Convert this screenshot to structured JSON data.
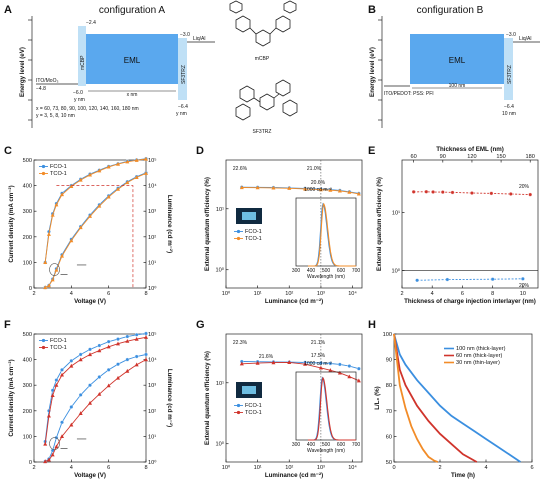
{
  "figure": {
    "panels": {
      "A": {
        "label": "A",
        "title": "configuration A",
        "ylabel": "Energy level (eV)",
        "layers": [
          {
            "name": "ITO/MoO₃",
            "level": "−4.8"
          },
          {
            "name": "mCBP",
            "lumo": "−2.4",
            "homo": "−6.0",
            "thickness": "y nm"
          },
          {
            "name": "EML",
            "thickness": "x nm"
          },
          {
            "name": "SF3TRZ",
            "lumo": "−3.0",
            "homo": "−6.4",
            "thickness": "y nm"
          },
          {
            "name": "Liq/Al"
          }
        ],
        "note_x": "x = 60, 73, 80, 90, 100, 120, 140, 160, 180 nm",
        "note_y": "y = 3, 5, 8, 10 nm"
      },
      "B": {
        "label": "B",
        "title": "configuration B",
        "ylabel": "Energy level (eV)",
        "layers": [
          {
            "name": "ITO/PEDOT: PSS: PFI"
          },
          {
            "name": "EML",
            "thickness": "100 nm"
          },
          {
            "name": "SF3TRZ",
            "lumo": "−3.0",
            "homo": "−6.4",
            "thickness": "10 nm"
          },
          {
            "name": "Liq/Al"
          }
        ]
      },
      "molecules": [
        "mCBP",
        "SF3TRZ"
      ]
    },
    "colors": {
      "blue": "#3b8fe0",
      "orange": "#f28c28",
      "red": "#d0342c",
      "eml": "#5aa8ee",
      "layer": "#bfe0f6",
      "dash": "#d0342c"
    },
    "icons": [
      "device-photo-icon",
      "molecule-structure-icon"
    ]
  },
  "chart_data": [
    {
      "panel": "C",
      "type": "line",
      "xlabel": "Voltage (V)",
      "ylabel": "Current density (mA cm⁻²)",
      "y2label": "Luminance (cd m⁻²)",
      "xlim": [
        2,
        8
      ],
      "ylim": [
        0,
        500
      ],
      "y2lim_log": [
        0,
        5
      ],
      "xticks": [
        "2",
        "4",
        "6",
        "8"
      ],
      "yticks": [
        "0",
        "100",
        "200",
        "300",
        "400",
        "500"
      ],
      "y2ticks": [
        "10⁰",
        "10¹",
        "10²",
        "10³",
        "10⁴",
        "10⁵"
      ],
      "legend": [
        "FCO-1",
        "TCO-1"
      ],
      "series": [
        {
          "name": "FCO-1",
          "axis": "J",
          "x": [
            2.6,
            2.8,
            3,
            3.2,
            3.5,
            4,
            4.5,
            5,
            5.5,
            6,
            6.5,
            7,
            7.5,
            8
          ],
          "y": [
            2,
            10,
            35,
            75,
            130,
            190,
            240,
            285,
            325,
            360,
            390,
            415,
            435,
            450
          ]
        },
        {
          "name": "TCO-1",
          "axis": "J",
          "x": [
            2.6,
            2.8,
            3,
            3.2,
            3.5,
            4,
            4.5,
            5,
            5.5,
            6,
            6.5,
            7,
            7.5,
            8
          ],
          "y": [
            2,
            9,
            32,
            70,
            125,
            185,
            236,
            280,
            320,
            356,
            386,
            412,
            432,
            448
          ]
        },
        {
          "name": "FCO-1",
          "axis": "L",
          "x": [
            2.6,
            2.8,
            3,
            3.2,
            3.5,
            4,
            4.5,
            5,
            5.5,
            6,
            6.5,
            7,
            7.5,
            8
          ],
          "y": [
            1.0,
            2.2,
            2.9,
            3.3,
            3.7,
            4.0,
            4.25,
            4.45,
            4.6,
            4.75,
            4.85,
            4.95,
            5.0,
            5.05
          ]
        },
        {
          "name": "TCO-1",
          "axis": "L",
          "x": [
            2.6,
            2.8,
            3,
            3.2,
            3.5,
            4,
            4.5,
            5,
            5.5,
            6,
            6.5,
            7,
            7.5,
            8
          ],
          "y": [
            1.0,
            2.1,
            2.85,
            3.25,
            3.65,
            3.97,
            4.22,
            4.42,
            4.58,
            4.73,
            4.84,
            4.93,
            4.99,
            5.04
          ]
        }
      ]
    },
    {
      "panel": "D",
      "type": "line",
      "xlabel": "Luminance (cd m⁻²)",
      "ylabel": "External quantum efficiency (%)",
      "xlim_log": [
        0,
        4.3
      ],
      "ylim_log": [
        -0.3,
        1.8
      ],
      "xticks": [
        "10⁰",
        "10¹",
        "10²",
        "10³",
        "10⁴"
      ],
      "yticks": [
        "10⁰",
        "10¹"
      ],
      "legend": [
        "FCO-1",
        "TCO-1"
      ],
      "annotations": [
        "22.6%",
        "21.0%",
        "20.6%",
        "1000 cd m⁻²"
      ],
      "series": [
        {
          "name": "FCO-1",
          "x": [
            0.5,
            1,
            1.5,
            2,
            2.5,
            3,
            3.3,
            3.6,
            3.9,
            4.2
          ],
          "y": [
            22.6,
            22.5,
            22.3,
            22.0,
            21.6,
            21.0,
            20.6,
            20.0,
            19.0,
            17.8
          ]
        },
        {
          "name": "TCO-1",
          "x": [
            0.5,
            1,
            1.5,
            2,
            2.5,
            3,
            3.3,
            3.6,
            3.9,
            4.2
          ],
          "y": [
            22.3,
            22.2,
            22.0,
            21.7,
            21.2,
            20.6,
            20.2,
            19.6,
            18.7,
            17.5
          ]
        }
      ],
      "inset": {
        "xlabel": "Wavelength (nm)",
        "xlim": [
          300,
          700
        ],
        "xticks": [
          "300",
          "400",
          "500",
          "600",
          "700"
        ],
        "peak": 480
      }
    },
    {
      "panel": "E",
      "type": "scatter",
      "xlabel": "Thickness of charge injection interlayer (nm)",
      "x2label": "Thickness of EML (nm)",
      "ylabel": "External quantum efficiency (%)",
      "xlim": [
        2,
        11
      ],
      "x2lim": [
        48,
        188
      ],
      "ylim_log": [
        -0.3,
        1.9
      ],
      "xticks": [
        "2",
        "4",
        "6",
        "8",
        "10"
      ],
      "x2ticks": [
        "60",
        "90",
        "120",
        "150",
        "180"
      ],
      "yticks": [
        "10⁰",
        "10¹"
      ],
      "annotations": [
        "20%",
        "20%"
      ],
      "series": [
        {
          "name": "EML thickness",
          "axis": "top",
          "x": [
            60,
            73,
            80,
            90,
            100,
            120,
            140,
            160,
            180
          ],
          "y": [
            22.5,
            22.6,
            22.4,
            22.3,
            22.0,
            21.5,
            21.2,
            20.7,
            20.2
          ]
        },
        {
          "name": "interlayer thickness",
          "axis": "bottom",
          "x": [
            3,
            5,
            8,
            10
          ],
          "y": [
            0.68,
            0.7,
            0.71,
            0.72
          ]
        }
      ]
    },
    {
      "panel": "F",
      "type": "line",
      "xlabel": "Voltage (V)",
      "ylabel": "Current density (mA cm⁻²)",
      "y2label": "Luminance (cd m⁻²)",
      "xlim": [
        2,
        8
      ],
      "ylim": [
        0,
        500
      ],
      "y2lim_log": [
        0,
        5
      ],
      "xticks": [
        "2",
        "4",
        "6",
        "8"
      ],
      "yticks": [
        "0",
        "100",
        "200",
        "300",
        "400",
        "500"
      ],
      "y2ticks": [
        "10⁰",
        "10¹",
        "10²",
        "10³",
        "10⁴",
        "10⁵"
      ],
      "legend": [
        "FCO-1",
        "TCO-1"
      ],
      "series": [
        {
          "name": "FCO-1",
          "axis": "J",
          "x": [
            2.6,
            2.8,
            3,
            3.2,
            3.5,
            4,
            4.5,
            5,
            5.5,
            6,
            6.5,
            7,
            7.5,
            8
          ],
          "y": [
            2,
            12,
            45,
            95,
            155,
            215,
            262,
            300,
            332,
            360,
            382,
            400,
            412,
            420
          ]
        },
        {
          "name": "TCO-1",
          "axis": "J",
          "x": [
            2.6,
            2.8,
            3,
            3.2,
            3.5,
            4,
            4.5,
            5,
            5.5,
            6,
            6.5,
            7,
            7.5,
            8
          ],
          "y": [
            2,
            8,
            28,
            60,
            100,
            145,
            190,
            230,
            265,
            298,
            328,
            355,
            380,
            400
          ]
        },
        {
          "name": "FCO-1",
          "axis": "L",
          "x": [
            2.6,
            2.8,
            3,
            3.2,
            3.5,
            4,
            4.5,
            5,
            5.5,
            6,
            6.5,
            7,
            7.5,
            8
          ],
          "y": [
            0.8,
            2.0,
            2.8,
            3.2,
            3.6,
            3.95,
            4.2,
            4.4,
            4.55,
            4.7,
            4.8,
            4.9,
            4.97,
            5.02
          ]
        },
        {
          "name": "TCO-1",
          "axis": "L",
          "x": [
            2.6,
            2.8,
            3,
            3.2,
            3.5,
            4,
            4.5,
            5,
            5.5,
            6,
            6.5,
            7,
            7.5,
            8
          ],
          "y": [
            0.7,
            1.8,
            2.6,
            3.0,
            3.4,
            3.75,
            4.0,
            4.2,
            4.35,
            4.5,
            4.62,
            4.72,
            4.8,
            4.87
          ]
        }
      ]
    },
    {
      "panel": "G",
      "type": "line",
      "xlabel": "Luminance (cd m⁻²)",
      "ylabel": "External quantum efficiency (%)",
      "xlim_log": [
        0,
        4.3
      ],
      "ylim_log": [
        -0.3,
        1.8
      ],
      "xticks": [
        "10⁰",
        "10¹",
        "10²",
        "10³",
        "10⁴"
      ],
      "yticks": [
        "10⁰",
        "10¹"
      ],
      "legend": [
        "FCO-1",
        "TCO-1"
      ],
      "annotations": [
        "22.3%",
        "21.6%",
        "21.1%",
        "17.5%",
        "1000 cd m⁻²"
      ],
      "series": [
        {
          "name": "FCO-1",
          "x": [
            0.5,
            1,
            1.5,
            2,
            2.5,
            3,
            3.3,
            3.6,
            3.9,
            4.2
          ],
          "y": [
            22.3,
            22.2,
            22.0,
            21.8,
            21.5,
            21.1,
            20.7,
            20.0,
            18.8,
            17.0
          ]
        },
        {
          "name": "TCO-1",
          "x": [
            0.5,
            1,
            1.5,
            2,
            2.5,
            3,
            3.3,
            3.6,
            3.9,
            4.2
          ],
          "y": [
            20.5,
            21.0,
            21.4,
            21.6,
            20.2,
            17.5,
            16.0,
            14.5,
            12.6,
            10.8
          ]
        }
      ],
      "inset": {
        "xlabel": "Wavelength (nm)",
        "xlim": [
          300,
          700
        ],
        "xticks": [
          "300",
          "400",
          "500",
          "600",
          "700"
        ],
        "peak": 475
      }
    },
    {
      "panel": "H",
      "type": "line",
      "xlabel": "Time (h)",
      "ylabel": "L/L₀ (%)",
      "xlim": [
        0,
        6
      ],
      "ylim": [
        50,
        100
      ],
      "xticks": [
        "0",
        "2",
        "4",
        "6"
      ],
      "yticks": [
        "50",
        "60",
        "70",
        "80",
        "90",
        "100"
      ],
      "legend": [
        "100 nm (thick-layer)",
        "60 nm (thick-layer)",
        "30 nm (thin-layer)"
      ],
      "series": [
        {
          "name": "100 nm (thick-layer)",
          "x": [
            0,
            0.25,
            0.5,
            1,
            1.5,
            2,
            2.5,
            3,
            3.5,
            4,
            4.5,
            5,
            5.5
          ],
          "y": [
            100,
            92,
            88,
            82,
            77,
            72,
            68,
            65,
            62,
            59,
            56,
            53,
            50
          ]
        },
        {
          "name": "60 nm (thick-layer)",
          "x": [
            0,
            0.25,
            0.5,
            1,
            1.5,
            2,
            2.5,
            3,
            3.6
          ],
          "y": [
            100,
            86,
            80,
            72,
            66,
            61,
            57,
            53,
            50
          ]
        },
        {
          "name": "30 nm (thin-layer)",
          "x": [
            0,
            0.25,
            0.5,
            0.75,
            1,
            1.25,
            1.5,
            1.75,
            1.9
          ],
          "y": [
            100,
            80,
            71,
            64,
            59,
            55,
            52,
            50.5,
            50
          ]
        }
      ]
    }
  ]
}
